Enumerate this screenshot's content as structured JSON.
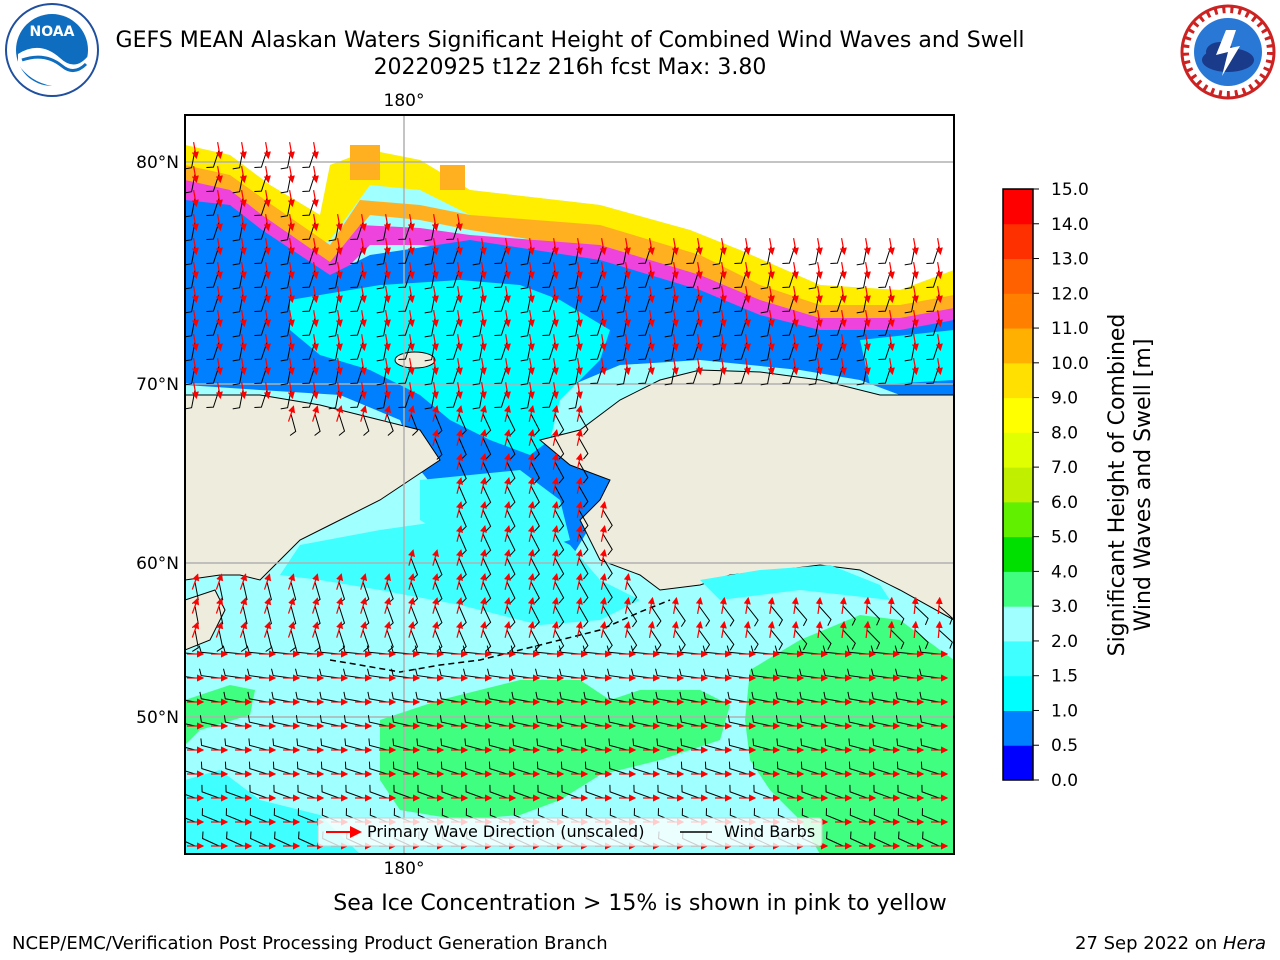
{
  "header": {
    "title_line1": "GEFS MEAN Alaskan Waters Significant Height of Combined Wind Waves and Swell",
    "title_line2": "20220925 t12z 216h fcst   Max: 3.80"
  },
  "logos": {
    "left": {
      "name": "noaa-logo",
      "text": "NOAA",
      "ring_text": "NATIONAL OCEANIC AND ATMOSPHERIC ADMINISTRATION · U.S. DEPARTMENT OF COMMERCE"
    },
    "right": {
      "name": "nws-logo",
      "ring_text": "NATIONAL WEATHER SERVICE"
    }
  },
  "map": {
    "lat_labels": [
      "80°N",
      "70°N",
      "60°N",
      "50°N"
    ],
    "lon_label_top": "180°",
    "lon_label_bottom": "180°",
    "colors": {
      "land": "#eeecdc",
      "ice_pink": "#ee44dd",
      "ice_orange": "#ffb020",
      "ice_yellow": "#ffee00",
      "grid": "#b0b0b0",
      "wave_arrow": "#ff0000",
      "wind_barb": "#000000"
    },
    "legend": {
      "wave_label": "Primary Wave Direction (unscaled)",
      "barb_label": "Wind Barbs"
    }
  },
  "colorbar": {
    "label_line1": "Significant Height of Combined",
    "label_line2": "Wind Waves and Swell [m]",
    "ticks": [
      "0.0",
      "0.5",
      "1.0",
      "1.5",
      "2.0",
      "3.0",
      "4.0",
      "5.0",
      "6.0",
      "7.0",
      "8.0",
      "9.0",
      "10.0",
      "11.0",
      "12.0",
      "13.0",
      "14.0",
      "15.0"
    ],
    "colors": [
      "#0000ff",
      "#0080ff",
      "#00ffff",
      "#40ffff",
      "#a0ffff",
      "#40ff80",
      "#00e000",
      "#60f000",
      "#c0f000",
      "#e0ff00",
      "#ffff00",
      "#ffe000",
      "#ffb000",
      "#ff8000",
      "#ff6000",
      "#ff3000",
      "#ff0000"
    ]
  },
  "notes": {
    "ice": "Sea Ice Concentration > 15% is shown in pink to yellow"
  },
  "footer": {
    "left": "NCEP/EMC/Verification Post Processing Product Generation Branch",
    "right_date": "27 Sep 2022 on ",
    "right_host": "Hera"
  }
}
